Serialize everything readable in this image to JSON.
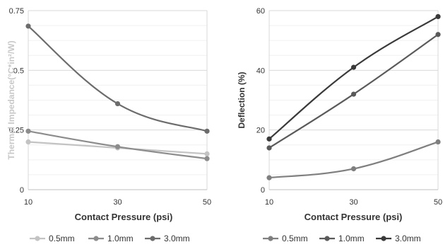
{
  "chart_data": [
    {
      "type": "line",
      "title": "",
      "xlabel": "Contact Pressure (psi)",
      "ylabel": "Thermal Impedance(°C*in²/W)",
      "x": [
        10,
        30,
        50
      ],
      "ylim": [
        0,
        0.75
      ],
      "yticks": [
        "0",
        "0.25",
        "0.5",
        "0.75"
      ],
      "xticks": [
        "10",
        "30",
        "50"
      ],
      "grid": "horizontal",
      "legend_position": "bottom",
      "series": [
        {
          "name": "0.5mm",
          "color": "#c3c3c3",
          "values": [
            0.2,
            0.175,
            0.15
          ]
        },
        {
          "name": "1.0mm",
          "color": "#8c8c8c",
          "values": [
            0.245,
            0.18,
            0.13
          ]
        },
        {
          "name": "3.0mm",
          "color": "#6c6c6c",
          "values": [
            0.685,
            0.36,
            0.245
          ]
        }
      ]
    },
    {
      "type": "line",
      "title": "",
      "xlabel": "Contact Pressure (psi)",
      "ylabel": "Deflection (%)",
      "x": [
        10,
        30,
        50
      ],
      "ylim": [
        0,
        60
      ],
      "yticks": [
        "0",
        "20",
        "40",
        "60"
      ],
      "xticks": [
        "10",
        "30",
        "50"
      ],
      "grid": "horizontal",
      "legend_position": "bottom",
      "series": [
        {
          "name": "0.5mm",
          "color": "#7f7f7f",
          "values": [
            4,
            7,
            16
          ]
        },
        {
          "name": "1.0mm",
          "color": "#5a5a5a",
          "values": [
            14,
            32,
            52
          ]
        },
        {
          "name": "3.0mm",
          "color": "#3a3a3a",
          "values": [
            17,
            41,
            58
          ]
        }
      ]
    }
  ]
}
